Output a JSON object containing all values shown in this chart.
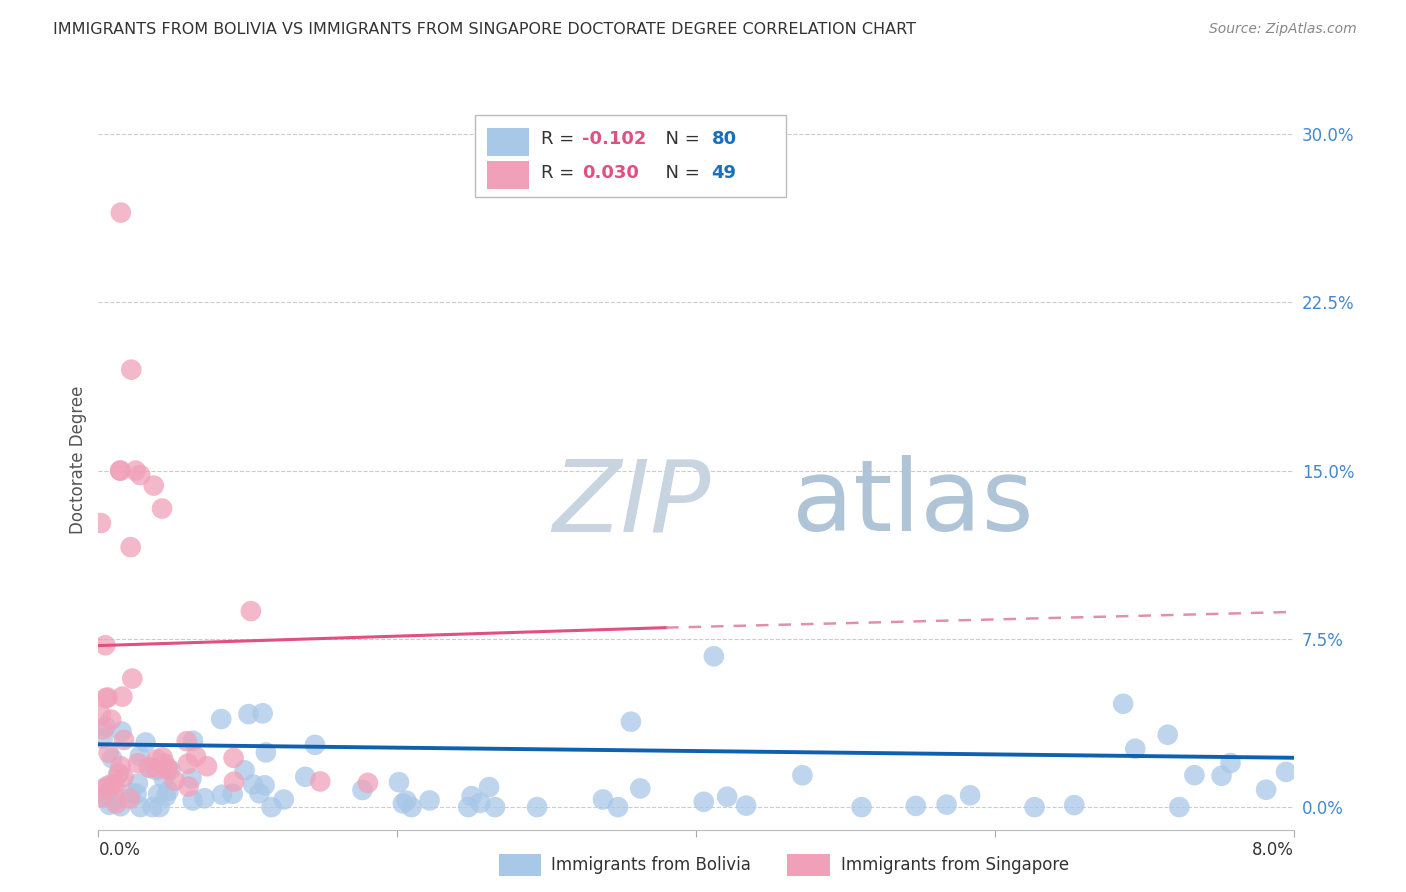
{
  "title": "IMMIGRANTS FROM BOLIVIA VS IMMIGRANTS FROM SINGAPORE DOCTORATE DEGREE CORRELATION CHART",
  "source": "Source: ZipAtlas.com",
  "ylabel": "Doctorate Degree",
  "ytick_vals": [
    0.0,
    7.5,
    15.0,
    22.5,
    30.0
  ],
  "xlim": [
    0.0,
    8.0
  ],
  "ylim": [
    -1.0,
    32.0
  ],
  "bolivia_color": "#a8c8e8",
  "singapore_color": "#f0a0b8",
  "bolivia_line_color": "#1060b0",
  "singapore_line_solid_color": "#e05080",
  "singapore_line_dash_color": "#e090a8",
  "background_color": "#ffffff",
  "grid_color": "#cccccc",
  "watermark_color": "#ccd8e8",
  "title_color": "#333333",
  "source_color": "#888888",
  "tick_color": "#4488cc",
  "legend_r_color": "#e05080",
  "legend_n_color": "#1a6fbd"
}
